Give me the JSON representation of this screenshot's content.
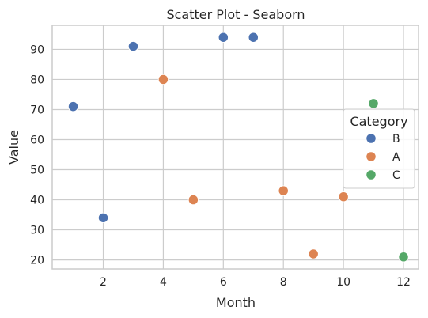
{
  "chart_data": {
    "type": "scatter",
    "title": "Scatter Plot - Seaborn",
    "xlabel": "Month",
    "ylabel": "Value",
    "xlim": [
      0.3,
      12.5
    ],
    "ylim": [
      17,
      98
    ],
    "xticks": [
      2,
      4,
      6,
      8,
      10,
      12
    ],
    "yticks": [
      20,
      30,
      40,
      50,
      60,
      70,
      80,
      90
    ],
    "grid": true,
    "legend": {
      "title": "Category",
      "placement": "center-right",
      "entries": [
        "B",
        "A",
        "C"
      ]
    },
    "series": [
      {
        "name": "B",
        "color": "#4c72b0",
        "points": [
          {
            "x": 1,
            "y": 71
          },
          {
            "x": 2,
            "y": 34
          },
          {
            "x": 3,
            "y": 91
          },
          {
            "x": 6,
            "y": 94
          },
          {
            "x": 7,
            "y": 94
          }
        ]
      },
      {
        "name": "A",
        "color": "#dd8452",
        "points": [
          {
            "x": 4,
            "y": 80
          },
          {
            "x": 5,
            "y": 40
          },
          {
            "x": 8,
            "y": 43
          },
          {
            "x": 9,
            "y": 22
          },
          {
            "x": 10,
            "y": 41
          }
        ]
      },
      {
        "name": "C",
        "color": "#55a868",
        "points": [
          {
            "x": 11,
            "y": 72
          },
          {
            "x": 12,
            "y": 21
          }
        ]
      }
    ]
  }
}
